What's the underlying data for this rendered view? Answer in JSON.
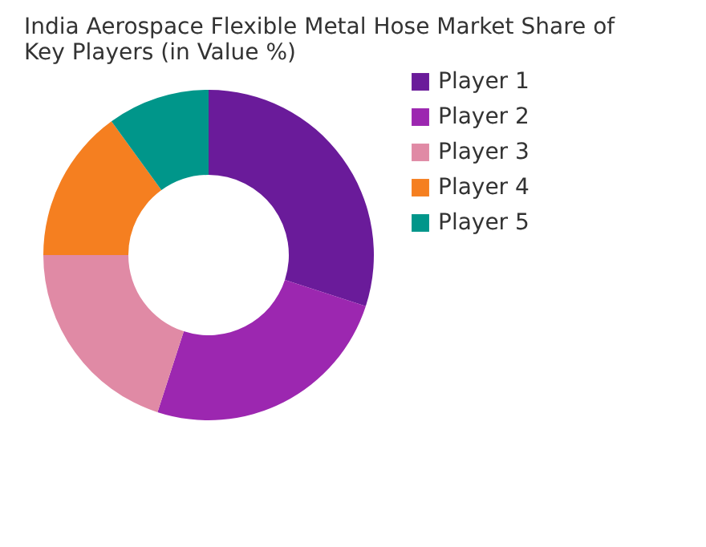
{
  "chart_data": {
    "type": "donut",
    "title": "India Aerospace Flexible Metal Hose Market Share of Key Players (in Value %)",
    "categories": [
      "Player 1",
      "Player 2",
      "Player 3",
      "Player 4",
      "Player 5"
    ],
    "values": [
      30,
      25,
      20,
      15,
      10
    ],
    "colors": [
      "#6a1b9a",
      "#9c27b0",
      "#e08aa5",
      "#f57f20",
      "#00968a"
    ],
    "legend": "right"
  }
}
